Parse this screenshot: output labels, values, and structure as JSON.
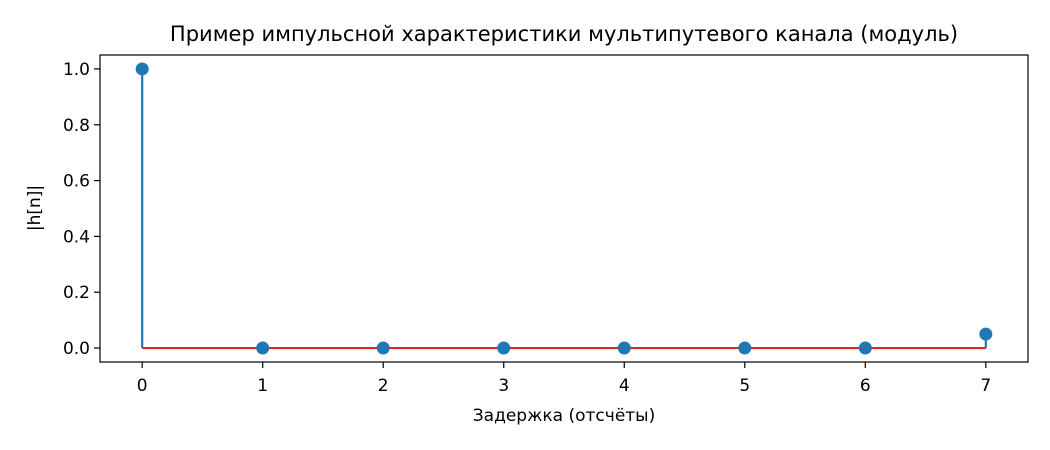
{
  "chart_data": {
    "type": "stem",
    "title": "Пример импульсной характеристики мультипутевого канала (модуль)",
    "xlabel": "Задержка (отсчёты)",
    "ylabel": "|h[n]|",
    "x": [
      0,
      1,
      2,
      3,
      4,
      5,
      6,
      7
    ],
    "values": [
      1.0,
      0.0,
      0.0,
      0.0,
      0.0,
      0.0,
      0.0,
      0.05
    ],
    "xlim": [
      -0.35,
      7.35
    ],
    "ylim": [
      -0.05,
      1.05
    ],
    "xticks": [
      0,
      1,
      2,
      3,
      4,
      5,
      6,
      7
    ],
    "xtick_labels": [
      "0",
      "1",
      "2",
      "3",
      "4",
      "5",
      "6",
      "7"
    ],
    "yticks": [
      0.0,
      0.2,
      0.4,
      0.6,
      0.8,
      1.0
    ],
    "ytick_labels": [
      "0.0",
      "0.2",
      "0.4",
      "0.6",
      "0.8",
      "1.0"
    ],
    "grid": false,
    "colors": {
      "stem": "#1f77b4",
      "marker": "#1f77b4",
      "baseline": "#d62728"
    }
  }
}
